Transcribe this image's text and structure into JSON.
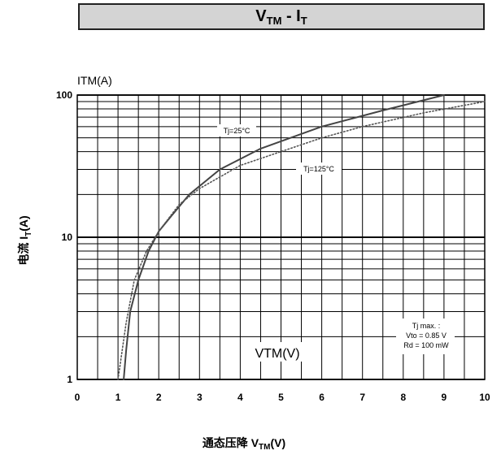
{
  "title": {
    "main": "V",
    "sub1": "TM",
    "mid": " - I",
    "sub2": "T"
  },
  "chart_data": {
    "type": "line",
    "title": "VTM - IT",
    "ylabel_top": "ITM(A)",
    "ylabel_side": {
      "prefix": "电流 I",
      "sub": "T",
      "suffix": "(A)"
    },
    "xlabel": {
      "prefix": "通态压降 V",
      "sub": "TM",
      "suffix": "(V)"
    },
    "inner_xlabel": "VTM(V)",
    "x_scale": "linear",
    "y_scale": "log",
    "xlim": [
      0,
      10
    ],
    "ylim": [
      1,
      100
    ],
    "x_ticks": [
      "0",
      "1",
      "2",
      "3",
      "4",
      "5",
      "6",
      "7",
      "8",
      "9",
      "10"
    ],
    "y_ticks": [
      "1",
      "10",
      "100"
    ],
    "grid": true,
    "series": [
      {
        "name": "Tj=25°C",
        "style": "solid",
        "color": "#444444",
        "points": [
          [
            1.14,
            1
          ],
          [
            1.2,
            1.6
          ],
          [
            1.3,
            3
          ],
          [
            1.5,
            5
          ],
          [
            1.75,
            8
          ],
          [
            2.0,
            11
          ],
          [
            2.3,
            14
          ],
          [
            2.75,
            20
          ],
          [
            3.5,
            30
          ],
          [
            4.5,
            42
          ],
          [
            6.0,
            60
          ],
          [
            7.5,
            78
          ],
          [
            9.0,
            100
          ]
        ]
      },
      {
        "name": "Tj=125°C",
        "style": "dotted",
        "color": "#555555",
        "points": [
          [
            1.0,
            1
          ],
          [
            1.2,
            2.5
          ],
          [
            1.4,
            5
          ],
          [
            1.7,
            8
          ],
          [
            2.0,
            11
          ],
          [
            2.5,
            17
          ],
          [
            3.0,
            22
          ],
          [
            4.0,
            32
          ],
          [
            5.0,
            40
          ],
          [
            6.0,
            50
          ],
          [
            7.0,
            60
          ],
          [
            8.5,
            75
          ],
          [
            10.0,
            90
          ]
        ]
      }
    ],
    "annotations": [
      "Tj max. :",
      "Vto = 0.85 V",
      "Rd = 100 mW"
    ]
  }
}
